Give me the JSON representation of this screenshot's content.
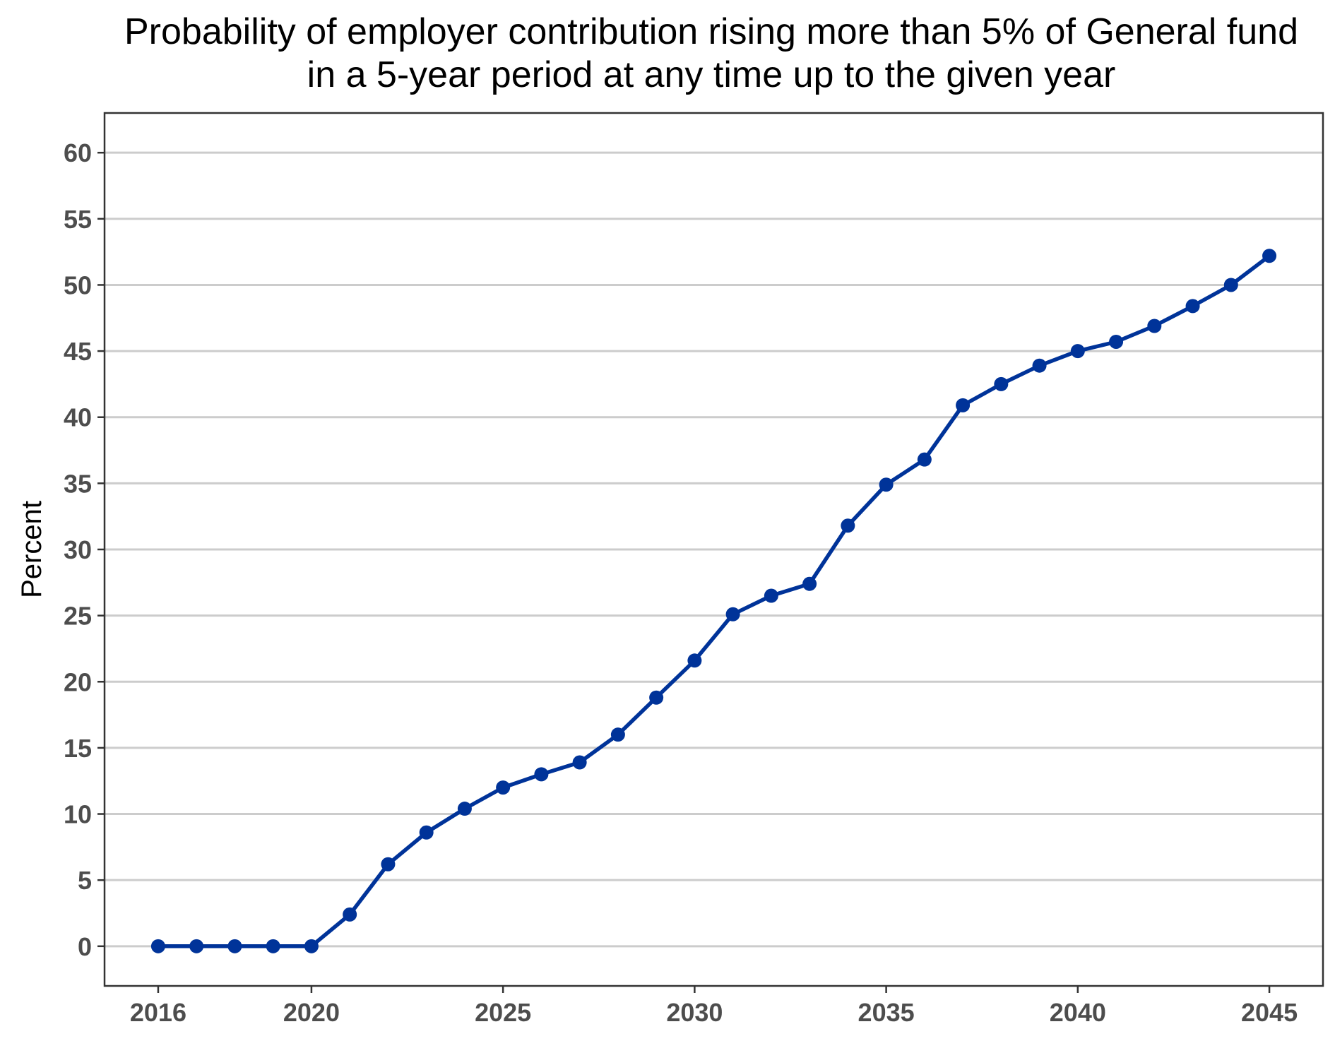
{
  "chart_data": {
    "type": "line",
    "title": [
      "Probability of employer contribution rising more than 5% of General fund",
      "in a 5-year period at any time up to the given year"
    ],
    "xlabel": "",
    "ylabel": "Percent",
    "x_ticks": [
      2016,
      2020,
      2025,
      2030,
      2035,
      2040,
      2045
    ],
    "y_ticks": [
      0,
      5,
      10,
      15,
      20,
      25,
      30,
      35,
      40,
      45,
      50,
      55,
      60
    ],
    "xlim": [
      2014.6,
      2046.4
    ],
    "ylim": [
      -3,
      63
    ],
    "grid": "horizontal-major",
    "legend": "none",
    "series": [
      {
        "color": "#003399",
        "x": [
          2016,
          2017,
          2018,
          2019,
          2020,
          2021,
          2022,
          2023,
          2024,
          2025,
          2026,
          2027,
          2028,
          2029,
          2030,
          2031,
          2032,
          2033,
          2034,
          2035,
          2036,
          2037,
          2038,
          2039,
          2040,
          2041,
          2042,
          2043,
          2044,
          2045
        ],
        "values": [
          0,
          0,
          0,
          0,
          0,
          2.4,
          6.2,
          8.6,
          10.4,
          12.0,
          13.0,
          13.9,
          16.0,
          18.8,
          21.6,
          25.1,
          26.5,
          27.4,
          31.8,
          34.9,
          36.8,
          40.9,
          42.5,
          43.9,
          45.0,
          45.7,
          46.9,
          48.4,
          50.0,
          52.2
        ]
      }
    ]
  }
}
